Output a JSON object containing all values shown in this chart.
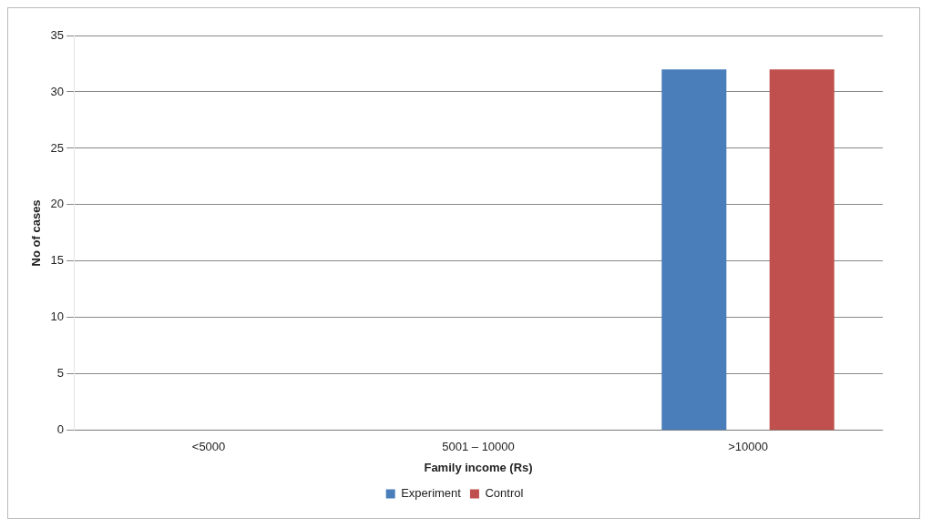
{
  "chart_data": {
    "type": "bar",
    "xlabel": "Family income (Rs)",
    "ylabel": "No of cases",
    "categories": [
      "<5000",
      "5001 – 10000",
      ">10000"
    ],
    "series": [
      {
        "name": "Experiment",
        "color": "#4a7ebb",
        "values": [
          0,
          0,
          32
        ]
      },
      {
        "name": "Control",
        "color": "#c0504d",
        "values": [
          0,
          0,
          32
        ]
      }
    ],
    "ylim": [
      0,
      35
    ],
    "yticks": [
      0,
      5,
      10,
      15,
      20,
      25,
      30,
      35
    ],
    "grid": "y",
    "legend": "bottom"
  }
}
